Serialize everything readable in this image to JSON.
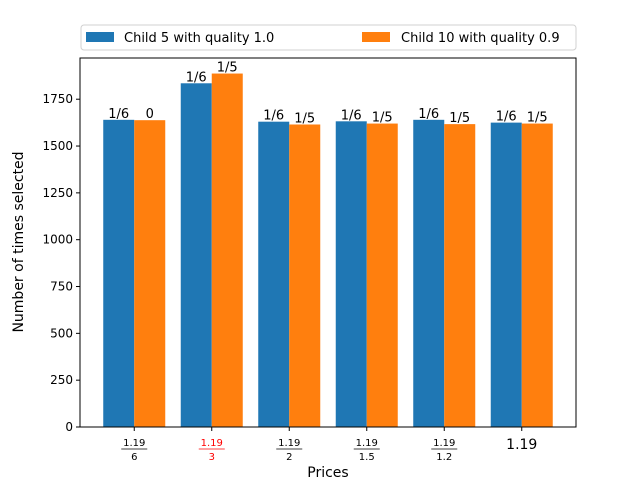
{
  "chart_data": {
    "type": "bar",
    "title": "",
    "xlabel": "Prices",
    "ylabel": "Number of times selected",
    "ylim": [
      0,
      1970
    ],
    "yticks": [
      0,
      250,
      500,
      750,
      1000,
      1250,
      1500,
      1750
    ],
    "grid": false,
    "legend_position": "top",
    "categories": [
      {
        "kind": "fraction",
        "num": "1.19",
        "den": "6",
        "highlight": false
      },
      {
        "kind": "fraction",
        "num": "1.19",
        "den": "3",
        "highlight": true
      },
      {
        "kind": "fraction",
        "num": "1.19",
        "den": "2",
        "highlight": false
      },
      {
        "kind": "fraction",
        "num": "1.19",
        "den": "1.5",
        "highlight": false
      },
      {
        "kind": "fraction",
        "num": "1.19",
        "den": "1.2",
        "highlight": false
      },
      {
        "kind": "plain",
        "text": "1.19",
        "highlight": false
      }
    ],
    "series": [
      {
        "name": "Child 5 with quality 1.0",
        "color": "#1f77b4",
        "values": [
          1640,
          1835,
          1630,
          1632,
          1640,
          1625
        ],
        "labels": [
          "1/6",
          "1/6",
          "1/6",
          "1/6",
          "1/6",
          "1/6"
        ]
      },
      {
        "name": "Child 10 with quality 0.9",
        "color": "#ff7f0e",
        "values": [
          1638,
          1887,
          1615,
          1620,
          1617,
          1620
        ],
        "labels": [
          "0",
          "1/5",
          "1/5",
          "1/5",
          "1/5",
          "1/5"
        ]
      }
    ],
    "highlight_color": "#ff0000"
  }
}
